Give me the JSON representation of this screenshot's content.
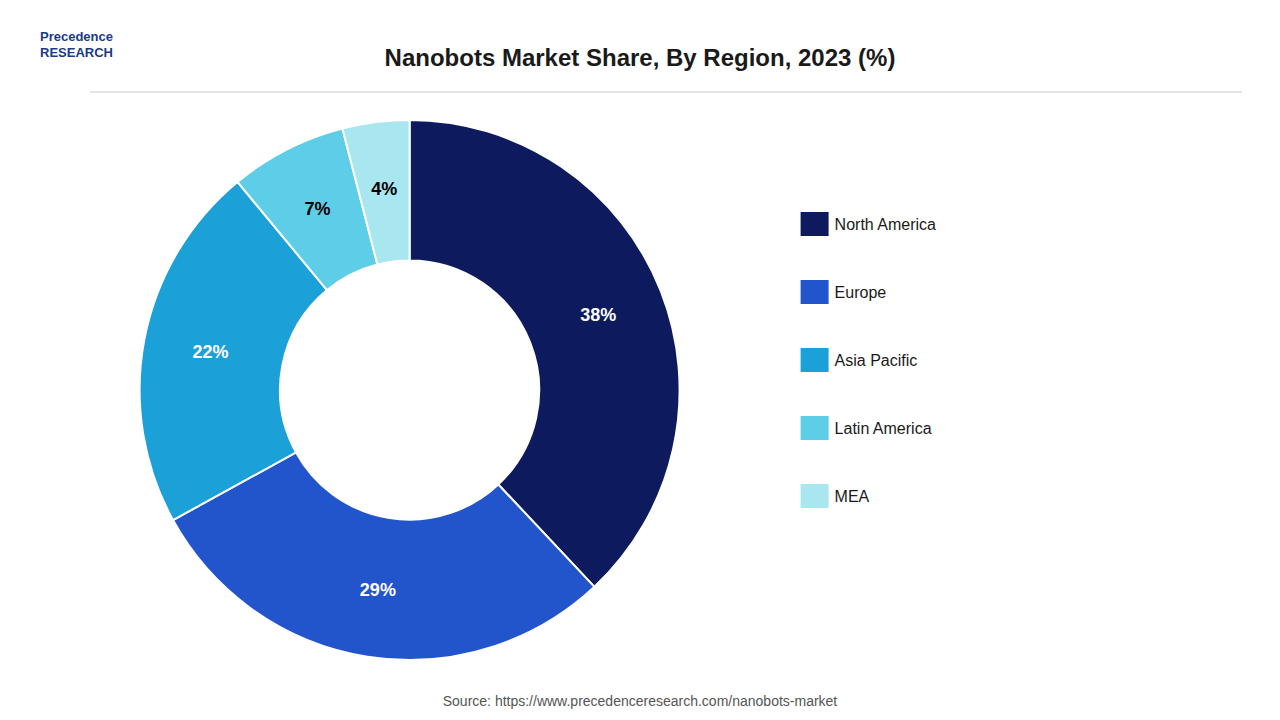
{
  "chart_data": {
    "type": "pie",
    "title": "Nanobots Market Share, By Region, 2023 (%)",
    "categories": [
      "North America",
      "Europe",
      "Asia Pacific",
      "Latin America",
      "MEA"
    ],
    "values": [
      38,
      29,
      22,
      7,
      4
    ],
    "value_labels": [
      "38%",
      "29%",
      "22%",
      "7%",
      "4%"
    ],
    "colors": [
      "#0d1b5e",
      "#2255cc",
      "#1ba0d8",
      "#5ecde8",
      "#a8e6f0"
    ],
    "data_labels": true,
    "legend": "right",
    "annotations": [
      "Precedence\nRESEARCH",
      "Source: https://www.precedenceresearch.com/nanobots-market"
    ]
  }
}
